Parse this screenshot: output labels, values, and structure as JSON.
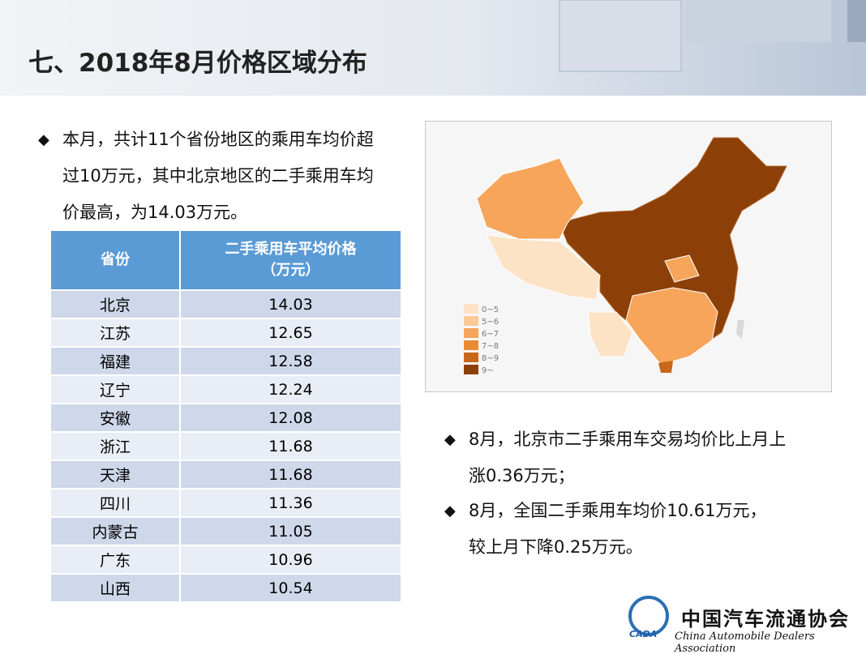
{
  "header": {
    "title": "七、2018年8月价格区域分布"
  },
  "intro": "本月，共计11个省份地区的乘用车均价超过10万元，其中北京地区的二手乘用车均价最高，为14.03万元。",
  "table": {
    "columns": [
      "省份",
      "二手乘用车平均价格\n（万元）"
    ],
    "rows": [
      [
        "北京",
        14.03
      ],
      [
        "江苏",
        12.65
      ],
      [
        "福建",
        12.58
      ],
      [
        "辽宁",
        12.24
      ],
      [
        "安徽",
        12.08
      ],
      [
        "浙江",
        11.68
      ],
      [
        "天津",
        11.68
      ],
      [
        "四川",
        11.36
      ],
      [
        "内蒙古",
        11.05
      ],
      [
        "广东",
        10.96
      ],
      [
        "山西",
        10.54
      ]
    ]
  },
  "map": {
    "legend": [
      {
        "label": "0~5",
        "color": "#fde3c6"
      },
      {
        "label": "5~6",
        "color": "#fbc995"
      },
      {
        "label": "6~7",
        "color": "#f7a55a"
      },
      {
        "label": "7~8",
        "color": "#e98a35"
      },
      {
        "label": "8~9",
        "color": "#c8671a"
      },
      {
        "label": "9~",
        "color": "#8c3f07"
      }
    ]
  },
  "bullets": [
    "8月，北京市二手乘用车交易均价比上月上涨0.36万元；",
    "8月，全国二手乘用车均价10.61万元，较上月下降0.25万元。"
  ],
  "logo": {
    "name": "中国汽车流通协会",
    "english": "China Automobile Dealers Association",
    "abbr": "CADA"
  }
}
